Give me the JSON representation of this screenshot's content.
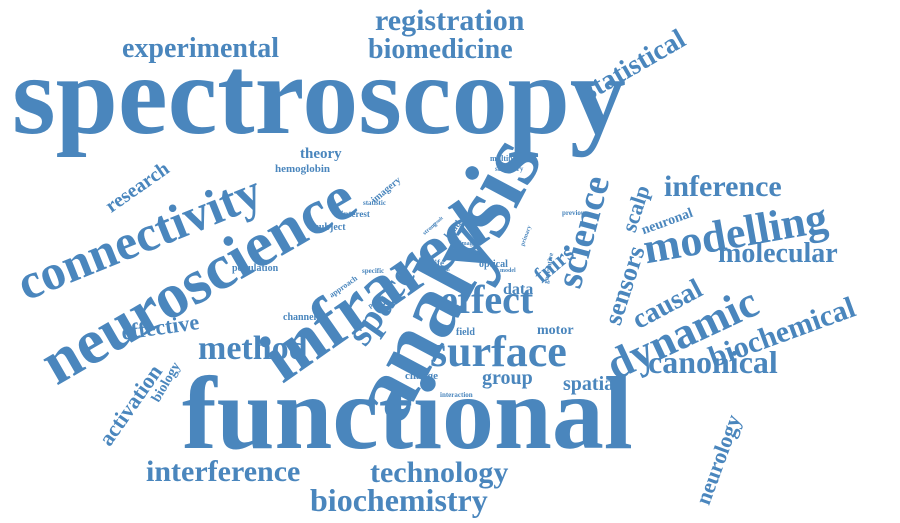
{
  "color": "#4a86bd",
  "words": [
    "spectroscopy",
    "functional",
    "analysis",
    "infrared",
    "neuroscience",
    "connectivity",
    "modelling",
    "surface",
    "dynamic",
    "effect",
    "space",
    "science",
    "registration",
    "biomedicine",
    "experimental",
    "statistical",
    "method",
    "biochemistry",
    "interference",
    "technology",
    "canonical",
    "biochemical",
    "inference",
    "molecular",
    "causal",
    "sensors",
    "scalp",
    "fnirs",
    "data",
    "motor",
    "group",
    "spatial",
    "effective",
    "activation",
    "biology",
    "neurology",
    "research",
    "theory",
    "hemoglobin",
    "imagery",
    "statistic",
    "interest",
    "subject",
    "population",
    "approach",
    "specific",
    "paper",
    "life",
    "brain",
    "optical",
    "model",
    "infer",
    "image",
    "head",
    "strong",
    "result",
    "primary",
    "generative",
    "multiple",
    "summary",
    "previous",
    "neuronal",
    "channel",
    "field",
    "change",
    "interaction"
  ]
}
